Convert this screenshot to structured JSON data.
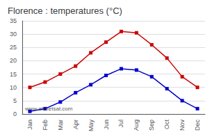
{
  "chart_data": {
    "type": "line",
    "title": "Florence : temperatures (°C)",
    "categories": [
      "Jan",
      "Feb",
      "Mar",
      "Apr",
      "May",
      "Jun",
      "Jul",
      "Aug",
      "Sep",
      "Oct",
      "Nov",
      "Dec"
    ],
    "series": [
      {
        "color": "#cc0000",
        "marker": "square",
        "values": [
          10,
          12,
          15,
          18,
          23,
          27,
          31,
          30.5,
          26,
          21,
          14,
          10
        ]
      },
      {
        "color": "#0000cc",
        "marker": "square",
        "values": [
          1,
          2,
          4.5,
          8,
          11,
          14.5,
          17,
          16.5,
          14,
          9.5,
          5,
          2
        ]
      }
    ],
    "ylim": [
      0,
      35
    ],
    "yticks": [
      0,
      5,
      10,
      15,
      20,
      25,
      30,
      35
    ],
    "grid": true,
    "annotation": "www.allmetsat.com"
  }
}
